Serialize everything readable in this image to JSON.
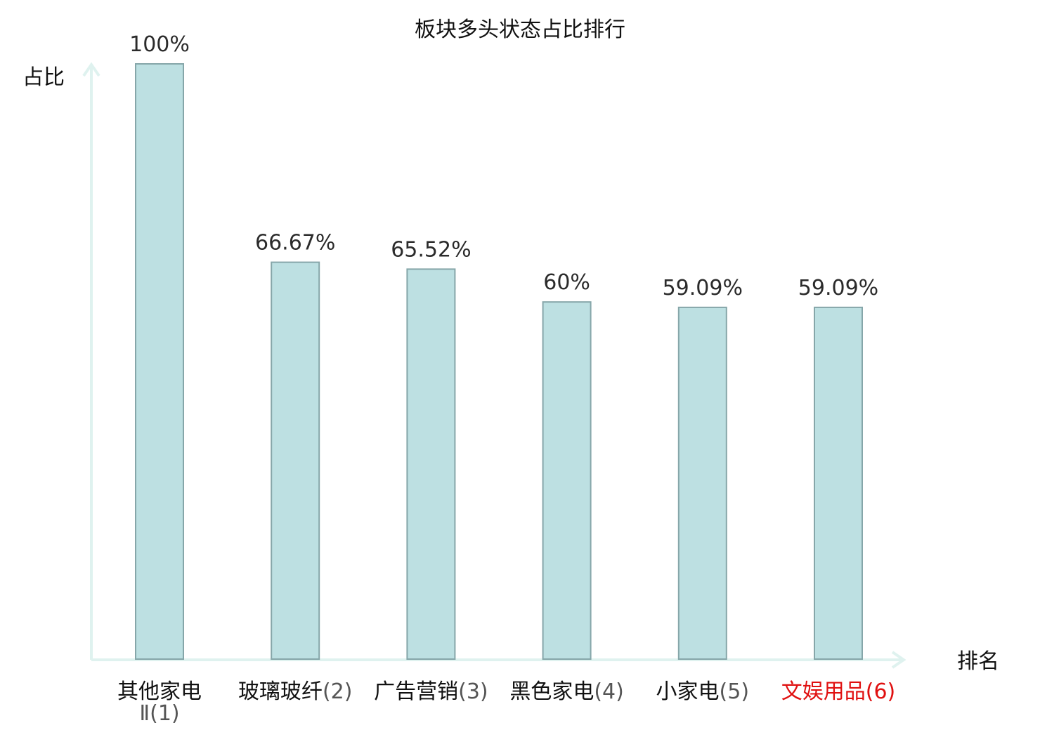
{
  "chart_data": {
    "type": "bar",
    "title": "板块多头状态占比排行",
    "xlabel": "排名",
    "ylabel": "占比",
    "categories": [
      {
        "name": "其他家电",
        "name_line2": "Ⅱ",
        "rank": "(1)",
        "highlight": false
      },
      {
        "name": "玻璃玻纤",
        "name_line2": "",
        "rank": "(2)",
        "highlight": false
      },
      {
        "name": "广告营销",
        "name_line2": "",
        "rank": "(3)",
        "highlight": false
      },
      {
        "name": "黑色家电",
        "name_line2": "",
        "rank": "(4)",
        "highlight": false
      },
      {
        "name": "小家电",
        "name_line2": "",
        "rank": "(5)",
        "highlight": false
      },
      {
        "name": "文娱用品",
        "name_line2": "",
        "rank": "(6)",
        "highlight": true
      }
    ],
    "values": [
      100,
      66.67,
      65.52,
      60,
      59.09,
      59.09
    ],
    "value_labels": [
      "100%",
      "66.67%",
      "65.52%",
      "60%",
      "59.09%",
      "59.09%"
    ],
    "ylim": [
      0,
      100
    ],
    "grid": false,
    "legend": "none",
    "colors": {
      "bar_fill": "#bde0e2",
      "bar_stroke": "#86a6a9",
      "axis": "#dff2ef",
      "text": "#2b2b2b",
      "highlight_text": "#e01010",
      "rank_text": "#555555"
    }
  }
}
